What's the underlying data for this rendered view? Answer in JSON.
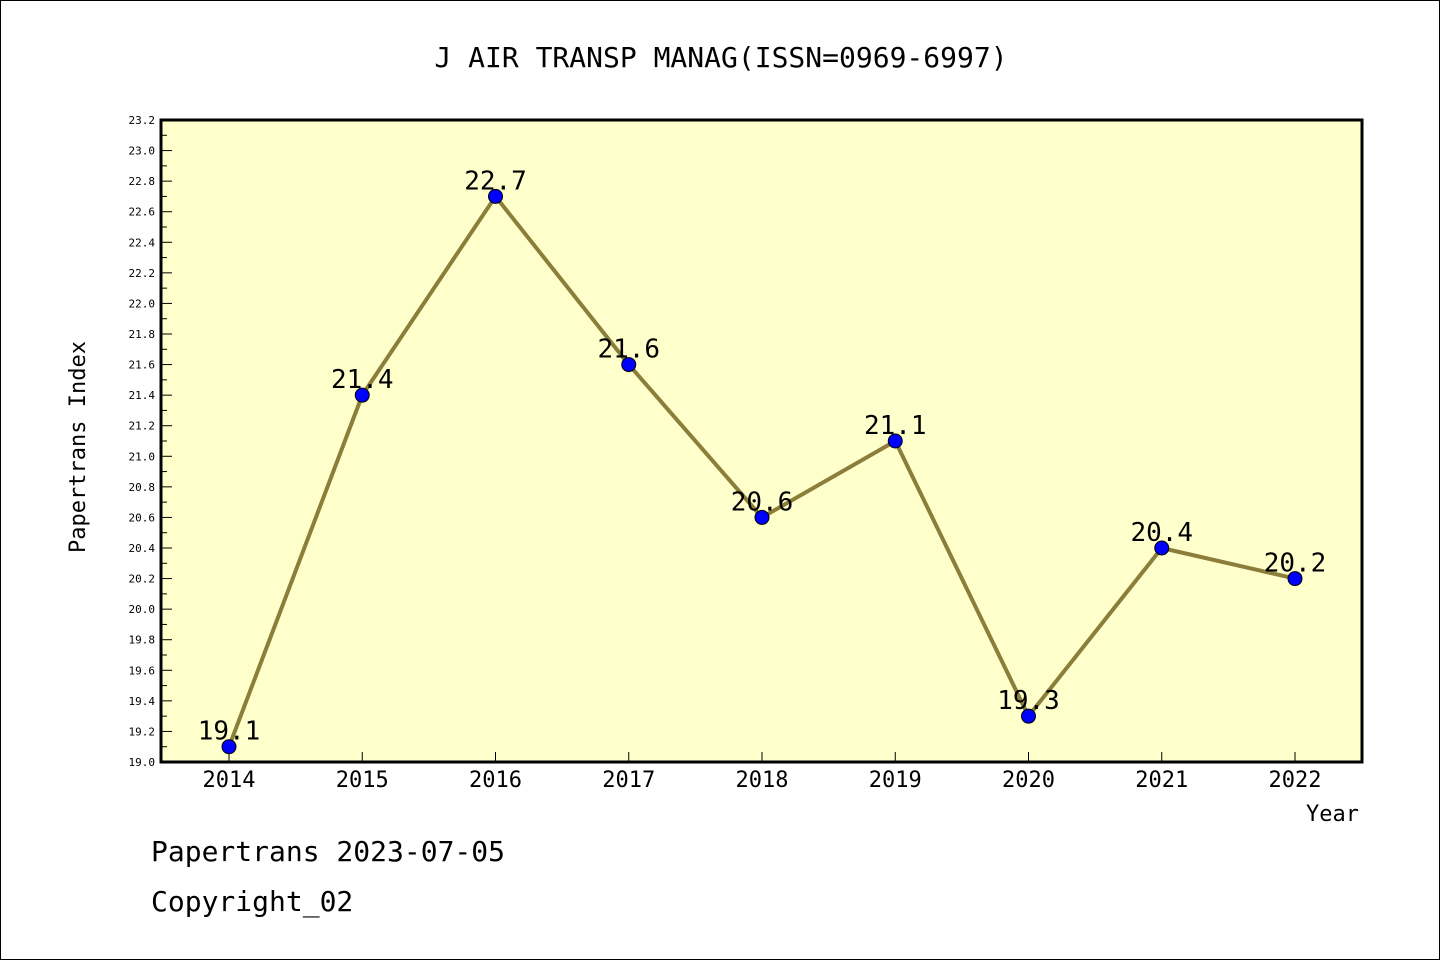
{
  "chart_data": {
    "type": "line",
    "title": "J AIR TRANSP MANAG(ISSN=0969-6997)",
    "xlabel": "Year",
    "ylabel": "Papertrans Index",
    "x": [
      "2014",
      "2015",
      "2016",
      "2017",
      "2018",
      "2019",
      "2020",
      "2021",
      "2022"
    ],
    "series": [
      {
        "values": [
          19.1,
          21.4,
          22.7,
          21.6,
          20.6,
          21.1,
          19.3,
          20.4,
          20.2
        ],
        "labels": [
          "19.1",
          "21.4",
          "22.7",
          "21.6",
          "20.6",
          "21.1",
          "19.3",
          "20.4",
          "20.2"
        ]
      }
    ],
    "ylim": [
      19.0,
      23.2
    ],
    "yticks": [
      "19.0",
      "19.2",
      "19.4",
      "19.6",
      "19.8",
      "20.0",
      "20.2",
      "20.4",
      "20.6",
      "20.8",
      "21.0",
      "21.2",
      "21.4",
      "21.6",
      "21.8",
      "22.0",
      "22.2",
      "22.4",
      "22.6",
      "22.8",
      "23.0",
      "23.2"
    ],
    "grid": false,
    "colors": {
      "plot_background": "#ffffcc",
      "line": "#8b7d3a",
      "marker": "#0000ff"
    }
  },
  "footer": {
    "line1": "Papertrans 2023-07-05",
    "line2": "Copyright_02"
  }
}
